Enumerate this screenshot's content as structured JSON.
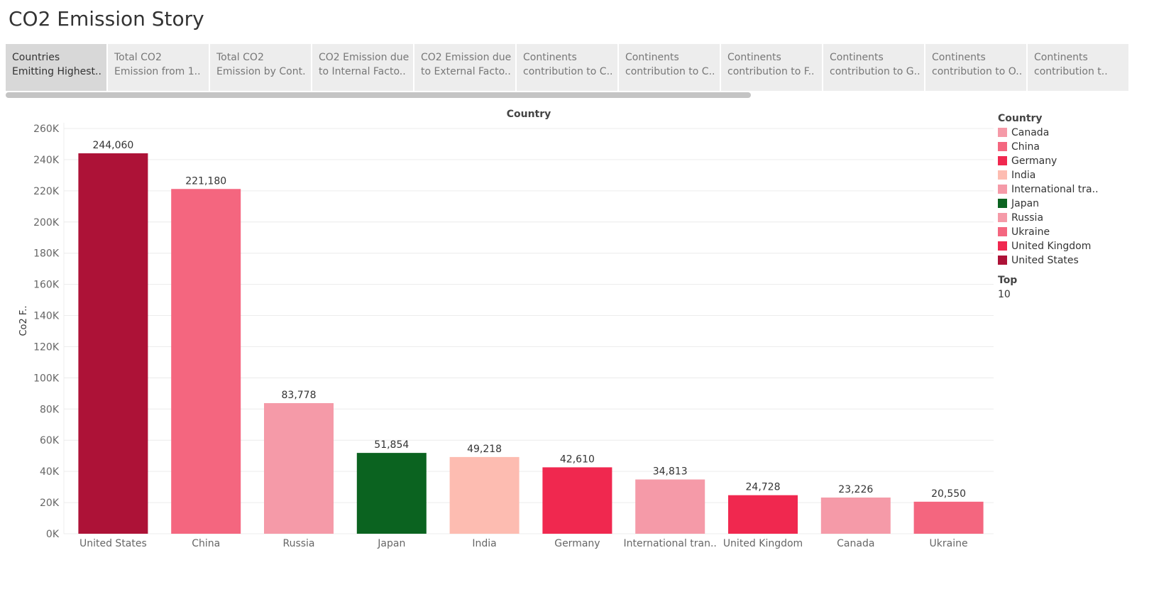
{
  "story": {
    "title": "CO2 Emission Story",
    "tabs": [
      {
        "line1": "Countries",
        "line2": "Emitting Highest..",
        "active": true
      },
      {
        "line1": "Total CO2",
        "line2": "Emission from 1..",
        "active": false
      },
      {
        "line1": "Total CO2",
        "line2": "Emission by Cont..",
        "active": false
      },
      {
        "line1": "CO2 Emission due",
        "line2": "to Internal Facto..",
        "active": false
      },
      {
        "line1": "CO2 Emission due",
        "line2": "to External Facto..",
        "active": false
      },
      {
        "line1": "Continents",
        "line2": "contribution to C..",
        "active": false
      },
      {
        "line1": "Continents",
        "line2": "contribution to C..",
        "active": false
      },
      {
        "line1": "Continents",
        "line2": "contribution to F..",
        "active": false
      },
      {
        "line1": "Continents",
        "line2": "contribution to G..",
        "active": false
      },
      {
        "line1": "Continents",
        "line2": "contribution to O..",
        "active": false
      },
      {
        "line1": "Continents",
        "line2": "contribution t..",
        "active": false
      }
    ]
  },
  "chart_data": {
    "type": "bar",
    "title": "Country",
    "xlabel": "",
    "ylabel": "Co2 F..",
    "categories": [
      "United States",
      "China",
      "Russia",
      "Japan",
      "India",
      "Germany",
      "International tran..",
      "United Kingdom",
      "Canada",
      "Ukraine"
    ],
    "values": [
      244060,
      221180,
      83778,
      51854,
      49218,
      42610,
      34813,
      24728,
      23226,
      20550
    ],
    "value_labels": [
      "244,060",
      "221,180",
      "83,778",
      "51,854",
      "49,218",
      "42,610",
      "34,813",
      "24,728",
      "23,226",
      "20,550"
    ],
    "colors": [
      "#ad1237",
      "#f4667f",
      "#f59aa8",
      "#0b6320",
      "#fdbcb1",
      "#f0284f",
      "#f59aa8",
      "#f0284f",
      "#f59aa8",
      "#f4667f"
    ],
    "ylim": [
      0,
      260000
    ],
    "y_ticks": [
      0,
      20000,
      40000,
      60000,
      80000,
      100000,
      120000,
      140000,
      160000,
      180000,
      200000,
      220000,
      240000,
      260000
    ],
    "y_tick_labels": [
      "0K",
      "20K",
      "40K",
      "60K",
      "80K",
      "100K",
      "120K",
      "140K",
      "160K",
      "180K",
      "200K",
      "220K",
      "240K",
      "260K"
    ],
    "grid": true,
    "legend_placement": "right"
  },
  "legend": {
    "title": "Country",
    "items": [
      {
        "label": "Canada",
        "color": "#f59aa8"
      },
      {
        "label": "China",
        "color": "#f4667f"
      },
      {
        "label": "Germany",
        "color": "#f0284f"
      },
      {
        "label": "India",
        "color": "#fdbcb1"
      },
      {
        "label": "International tra..",
        "color": "#f59aa8"
      },
      {
        "label": "Japan",
        "color": "#0b6320"
      },
      {
        "label": "Russia",
        "color": "#f59aa8"
      },
      {
        "label": "Ukraine",
        "color": "#f4667f"
      },
      {
        "label": "United Kingdom",
        "color": "#f0284f"
      },
      {
        "label": "United States",
        "color": "#ad1237"
      }
    ]
  },
  "filter": {
    "title": "Top",
    "value": "10"
  }
}
